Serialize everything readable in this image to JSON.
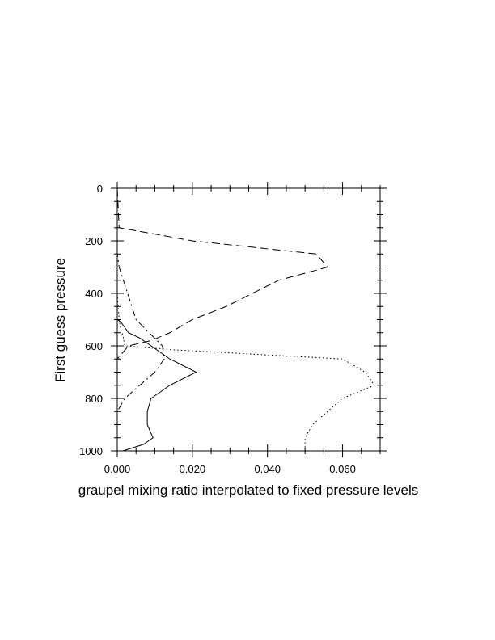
{
  "chart_data": {
    "type": "line",
    "title": "",
    "xlabel": "graupel mixing ratio interpolated to fixed pressure levels",
    "ylabel": "First guess pressure",
    "xlim": [
      0,
      0.07
    ],
    "ylim": [
      1000,
      0
    ],
    "y_inverted": true,
    "grid": false,
    "legend": "none",
    "xticks": [
      0,
      0.02,
      0.04,
      0.06
    ],
    "xtick_labels": [
      "0.000",
      "0.020",
      "0.040",
      "0.060"
    ],
    "xminor_step": 0.005,
    "yticks": [
      0,
      200,
      400,
      600,
      800,
      1000
    ],
    "ytick_labels": [
      "0",
      "200",
      "400",
      "600",
      "800",
      "1000"
    ],
    "yminor_step": 50,
    "series": [
      {
        "line_style": "solid",
        "x": [
          0,
          0,
          0,
          0,
          0,
          0.001,
          0.003,
          0.006,
          0.009,
          0.014,
          0.021,
          0.014,
          0.009,
          0.008,
          0.008,
          0.0095,
          0.007,
          0.0015
        ],
        "y": [
          0,
          150,
          300,
          450,
          500,
          510,
          550,
          570,
          600,
          650,
          700,
          750,
          800,
          850,
          900,
          950,
          975,
          1000
        ]
      },
      {
        "line_style": "dotted",
        "x": [
          0,
          0,
          0.0005,
          0.001,
          0.0015,
          0.002,
          0.015,
          0.06,
          0.066,
          0.0685,
          0.06,
          0.052,
          0.05,
          0.05
        ],
        "y": [
          0,
          400,
          500,
          540,
          560,
          600,
          615,
          650,
          700,
          750,
          800,
          900,
          950,
          1000
        ]
      },
      {
        "line_style": "dash-dot",
        "x": [
          0,
          0,
          0.0005,
          0.005,
          0.012,
          0.0125,
          0.01,
          0.002,
          0,
          0
        ],
        "y": [
          0,
          250,
          300,
          500,
          600,
          650,
          700,
          800,
          850,
          1000
        ]
      },
      {
        "line_style": "dashed",
        "x": [
          0,
          0.0005,
          0.02,
          0.053,
          0.056,
          0.043,
          0.029,
          0.02,
          0.014,
          0.009,
          0.003,
          0,
          0
        ],
        "y": [
          0,
          150,
          200,
          250,
          300,
          350,
          450,
          500,
          550,
          580,
          600,
          650,
          1000
        ]
      }
    ]
  }
}
